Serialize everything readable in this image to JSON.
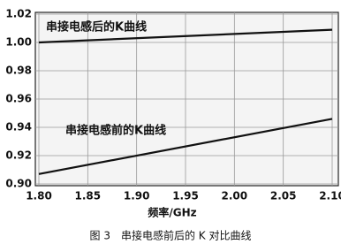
{
  "chart_data": {
    "type": "line",
    "x_label": "频率/GHz",
    "caption": "图 3　串接电感前后的 K 对比曲线",
    "x": [
      1.8,
      2.1
    ],
    "series": [
      {
        "name": "串接电感后的K曲线",
        "color": "#111111",
        "values": [
          1.0,
          1.009
        ]
      },
      {
        "name": "串接电感前的K曲线",
        "color": "#111111",
        "values": [
          0.907,
          0.946
        ]
      }
    ],
    "xlim": [
      1.8,
      2.1
    ],
    "ylim": [
      0.9,
      1.02
    ],
    "xticks": [
      {
        "value": 1.8,
        "label": "1.80"
      },
      1.85,
      {
        "value": 1.9,
        "label": "1.90"
      },
      1.95,
      {
        "value": 2.0,
        "label": "2.00"
      },
      2.05,
      {
        "value": 2.1,
        "label": "2.10"
      }
    ],
    "yticks": [
      {
        "value": 0.9,
        "label": "0.90"
      },
      0.92,
      0.94,
      0.96,
      0.98,
      {
        "value": 1.0,
        "label": "1.00"
      },
      1.02
    ],
    "grid": true
  }
}
